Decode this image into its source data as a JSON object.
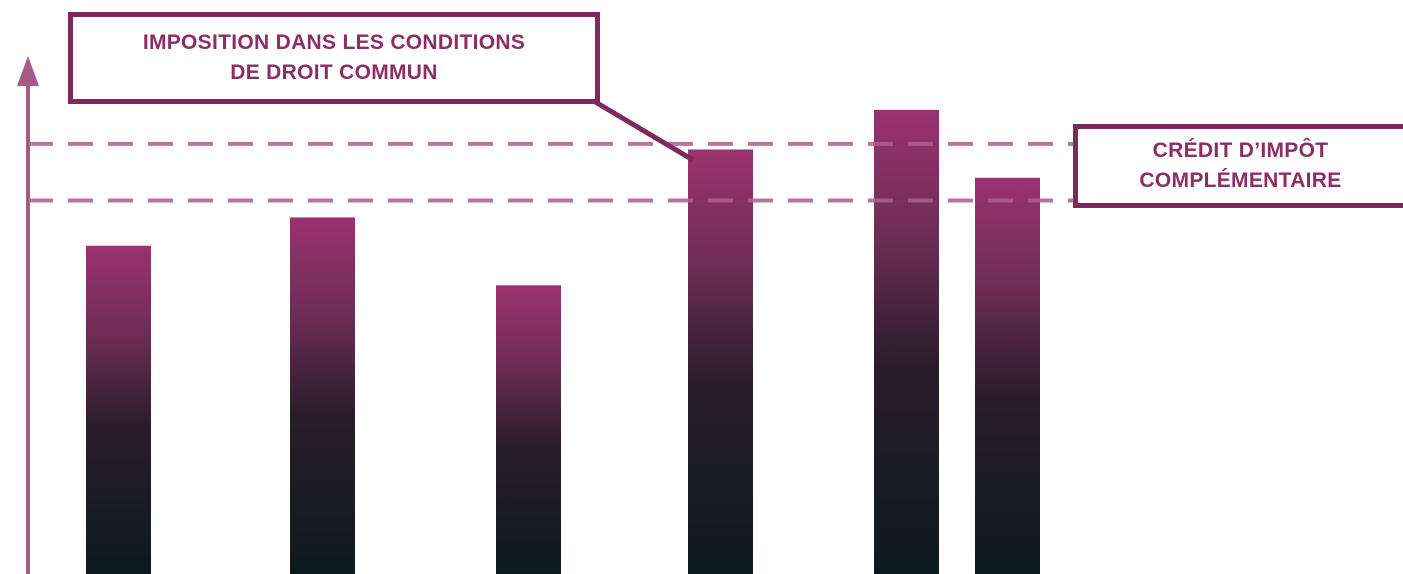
{
  "colors": {
    "accent": "#7c2a5c",
    "text": "#8c2e66",
    "axis": "#a55a86",
    "reference_line": "#b05f8e",
    "bar_top": "#9b3270",
    "bar_bottom": "#0c1a1d"
  },
  "callouts": {
    "ordinary_taxation": {
      "line1": "IMPOSITION DANS LES CONDITIONS",
      "line2": "DE DROIT COMMUN"
    },
    "additional_credit": {
      "line1": "CRÉDIT D’IMPÔT",
      "line2": "COMPLÉMENTAIRE"
    }
  },
  "chart_data": {
    "type": "bar",
    "title": "",
    "xlabel": "",
    "ylabel": "",
    "axis_labels_shown": false,
    "grid": false,
    "legend": "none",
    "categories": [
      "",
      "",
      "",
      "",
      "",
      ""
    ],
    "values": [
      58,
      63,
      51,
      75,
      82,
      70
    ],
    "ylim": [
      0,
      100
    ],
    "reference_lines": [
      {
        "value": 76,
        "style": "dashed"
      },
      {
        "value": 66,
        "style": "dashed"
      }
    ]
  }
}
